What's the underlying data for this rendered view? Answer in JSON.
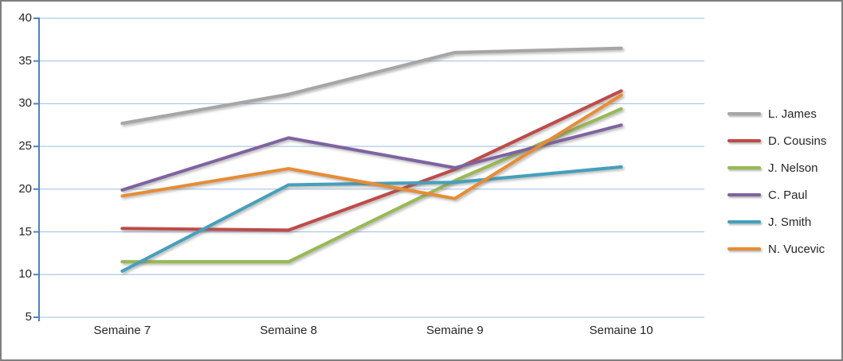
{
  "chart_data": {
    "type": "line",
    "categories": [
      "Semaine 7",
      "Semaine 8",
      "Semaine 9",
      "Semaine 10"
    ],
    "series": [
      {
        "name": "L. James",
        "color": "#a6a6a6",
        "values": [
          27.7,
          31.1,
          36.0,
          36.5
        ]
      },
      {
        "name": "D. Cousins",
        "color": "#be4b48",
        "values": [
          15.4,
          15.2,
          22.3,
          31.5
        ]
      },
      {
        "name": "J. Nelson",
        "color": "#98b954",
        "values": [
          11.5,
          11.5,
          21.0,
          29.4
        ]
      },
      {
        "name": "C. Paul",
        "color": "#7e63a1",
        "values": [
          19.9,
          26.0,
          22.5,
          27.5
        ]
      },
      {
        "name": "J. Smith",
        "color": "#45a0bc",
        "values": [
          10.4,
          20.5,
          20.8,
          22.6
        ]
      },
      {
        "name": "N. Vucevic",
        "color": "#e78c35",
        "values": [
          19.2,
          22.4,
          18.9,
          31.0
        ]
      }
    ],
    "title": "",
    "xlabel": "",
    "ylabel": "",
    "ylim": [
      5,
      40
    ],
    "ytick_step": 5,
    "yticks": [
      5,
      10,
      15,
      20,
      25,
      30,
      35,
      40
    ],
    "grid": true,
    "legend_position": "right",
    "colors": {
      "axis_line": "#4f81bd",
      "gridline": "#9dbce0",
      "tick": "#4f81bd",
      "label_text": "#262626",
      "frame_border": "#7f7f7f",
      "background": "#ffffff"
    }
  }
}
